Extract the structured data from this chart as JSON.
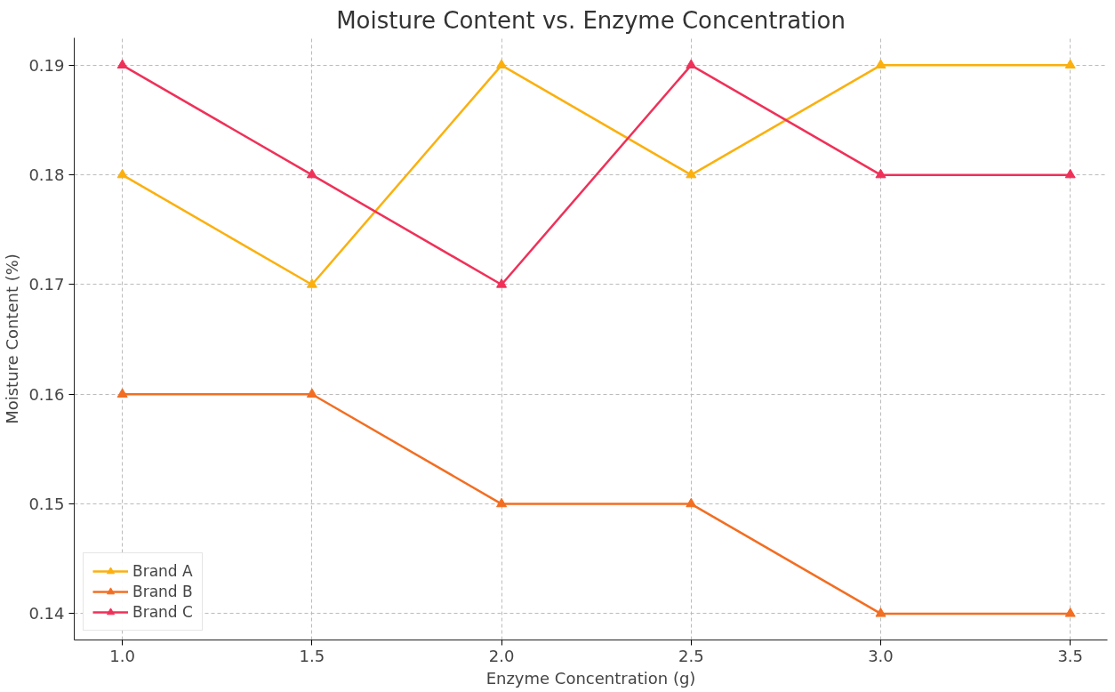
{
  "chart_data": {
    "type": "line",
    "title": "Moisture Content vs. Enzyme Concentration",
    "xlabel": "Enzyme Concentration (g)",
    "ylabel": "Moisture Content (%)",
    "x": [
      1.0,
      1.5,
      2.0,
      2.5,
      3.0,
      3.5
    ],
    "series": [
      {
        "name": "Brand A",
        "color": "#fbb00e",
        "values": [
          0.18,
          0.17,
          0.19,
          0.18,
          0.19,
          0.19
        ]
      },
      {
        "name": "Brand B",
        "color": "#f26e22",
        "values": [
          0.16,
          0.16,
          0.15,
          0.15,
          0.14,
          0.14
        ]
      },
      {
        "name": "Brand C",
        "color": "#ef3159",
        "values": [
          0.19,
          0.18,
          0.17,
          0.19,
          0.18,
          0.18
        ]
      }
    ],
    "xlim": [
      0.873,
      3.598
    ],
    "ylim": [
      0.1376,
      0.1925
    ],
    "xticks": [
      {
        "value": 1.0,
        "label": "1.0"
      },
      {
        "value": 1.5,
        "label": "1.5"
      },
      {
        "value": 2.0,
        "label": "2.0"
      },
      {
        "value": 2.5,
        "label": "2.5"
      },
      {
        "value": 3.0,
        "label": "3.0"
      },
      {
        "value": 3.5,
        "label": "3.5"
      }
    ],
    "yticks": [
      0.14,
      0.15,
      0.16,
      0.17,
      0.18,
      0.19
    ],
    "grid": true,
    "legend": "bottom left",
    "marker": "triangle",
    "line_style": "solid"
  }
}
